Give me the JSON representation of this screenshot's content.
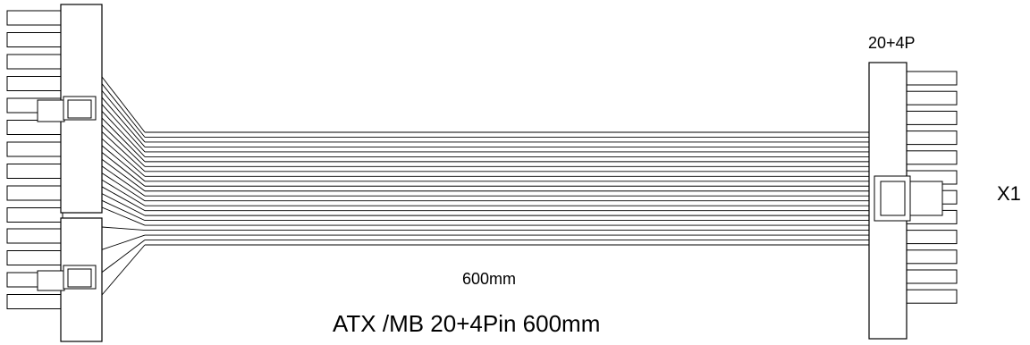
{
  "diagram": {
    "connector_label": "20+4P",
    "connector_id": "X1",
    "length_label": "600mm",
    "title": "ATX /MB 20+4Pin 600mm"
  },
  "colors": {
    "line": "#000000",
    "background": "#ffffff"
  },
  "wire_count": 24
}
